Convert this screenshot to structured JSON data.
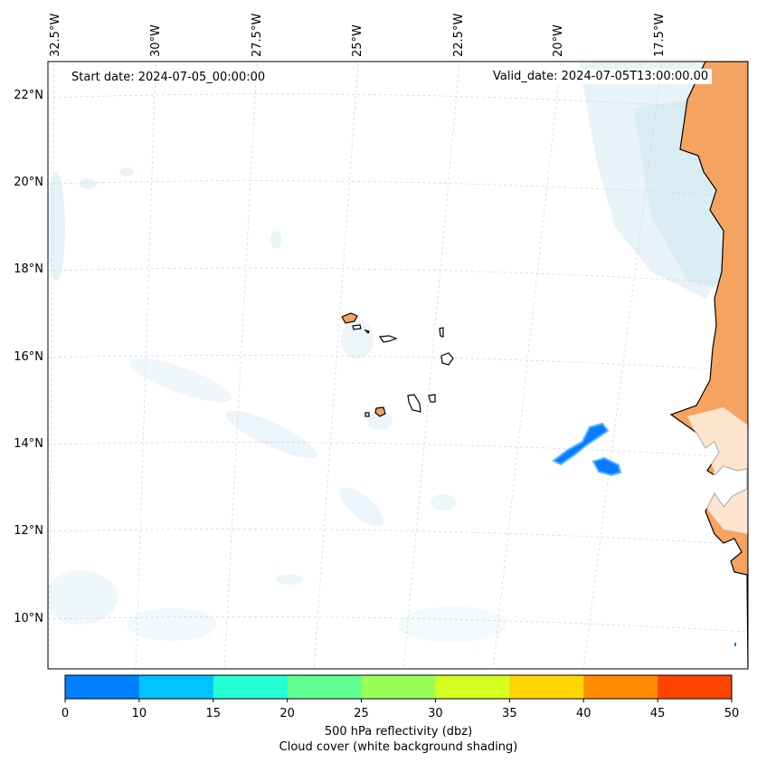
{
  "map": {
    "start_date": "Start date: 2024-07-05_00:00:00",
    "valid_date": "Valid_date: 2024-07-05T13:00:00.00",
    "longitude_labels": [
      "32.5°W",
      "30°W",
      "27.5°W",
      "25°W",
      "22.5°W",
      "20°W",
      "17.5°W"
    ],
    "latitude_labels": [
      "22°N",
      "20°N",
      "18°N",
      "16°N",
      "14°N",
      "12°N",
      "10°N"
    ],
    "land_color": "#f4a460",
    "cloud_color": "#cfe6ef",
    "reflectivity_color": "#0a7bff"
  },
  "colorbar": {
    "tick_labels": [
      "0",
      "10",
      "15",
      "20",
      "25",
      "30",
      "35",
      "40",
      "45",
      "50"
    ],
    "colors": [
      "#0080ff",
      "#00c3ff",
      "#21ffd3",
      "#60ff8f",
      "#98ff58",
      "#d4ff21",
      "#ffd700",
      "#ff8c00",
      "#ff4500"
    ],
    "label_line1": "500 hPa reflectivity (dbz)",
    "label_line2": "Cloud cover (white background shading)"
  }
}
